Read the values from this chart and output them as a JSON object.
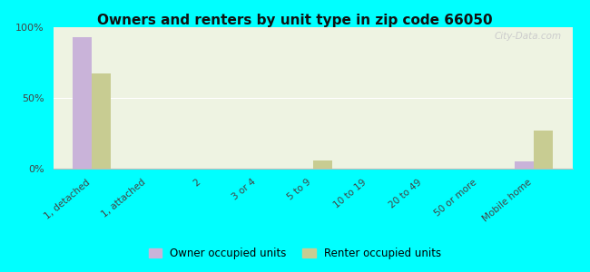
{
  "title": "Owners and renters by unit type in zip code 66050",
  "categories": [
    "1, detached",
    "1, attached",
    "2",
    "3 or 4",
    "5 to 9",
    "10 to 19",
    "20 to 49",
    "50 or more",
    "Mobile home"
  ],
  "owner_values": [
    93,
    0,
    0,
    0,
    0,
    0,
    0,
    0,
    5
  ],
  "renter_values": [
    67,
    0,
    0,
    0,
    6,
    0,
    0,
    0,
    27
  ],
  "owner_color": "#c9b3d9",
  "renter_color": "#c8cc92",
  "background_color": "#00ffff",
  "plot_bg_color": "#eef3e2",
  "ylim": [
    0,
    100
  ],
  "yticks": [
    0,
    50,
    100
  ],
  "ytick_labels": [
    "0%",
    "50%",
    "100%"
  ],
  "watermark": "City-Data.com",
  "bar_width": 0.35,
  "legend_owner": "Owner occupied units",
  "legend_renter": "Renter occupied units"
}
